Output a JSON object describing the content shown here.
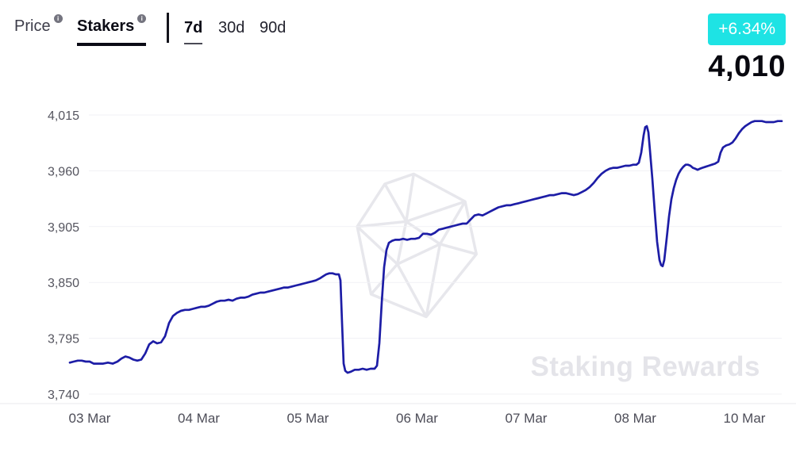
{
  "header": {
    "metric_tabs": [
      {
        "label": "Price"
      },
      {
        "label": "Stakers"
      }
    ],
    "active_metric": "Stakers",
    "range_tabs": [
      {
        "label": "7d"
      },
      {
        "label": "30d"
      },
      {
        "label": "90d"
      }
    ],
    "active_range": "7d",
    "change_badge": "+6.34%",
    "badge_color": "#1ee3e4",
    "current_value": "4,010"
  },
  "watermark": {
    "text": "Staking Rewards"
  },
  "chart_data": {
    "type": "line",
    "series_name": "Stakers",
    "line_color": "#1d1da6",
    "ylim": [
      3740,
      4015
    ],
    "grid": true,
    "y_tick_values": [
      4015,
      3960,
      3905,
      3850,
      3795,
      3740
    ],
    "y_ticks": [
      "4,015",
      "3,960",
      "3,905",
      "3,850",
      "3,795",
      "3,740"
    ],
    "x_ticks": [
      "03 Mar",
      "04 Mar",
      "05 Mar",
      "06 Mar",
      "07 Mar",
      "08 Mar",
      "10 Mar"
    ],
    "points": [
      [
        88,
        3771
      ],
      [
        93,
        3772
      ],
      [
        98,
        3773
      ],
      [
        103,
        3773
      ],
      [
        108,
        3772
      ],
      [
        113,
        3772
      ],
      [
        118,
        3770
      ],
      [
        124,
        3770
      ],
      [
        130,
        3770
      ],
      [
        136,
        3771
      ],
      [
        142,
        3770
      ],
      [
        148,
        3772
      ],
      [
        153,
        3775
      ],
      [
        158,
        3777
      ],
      [
        163,
        3776
      ],
      [
        168,
        3774
      ],
      [
        173,
        3773
      ],
      [
        178,
        3774
      ],
      [
        183,
        3780
      ],
      [
        188,
        3789
      ],
      [
        193,
        3792
      ],
      [
        198,
        3790
      ],
      [
        203,
        3791
      ],
      [
        208,
        3797
      ],
      [
        213,
        3810
      ],
      [
        218,
        3817
      ],
      [
        223,
        3820
      ],
      [
        228,
        3822
      ],
      [
        233,
        3823
      ],
      [
        238,
        3823
      ],
      [
        243,
        3824
      ],
      [
        248,
        3825
      ],
      [
        253,
        3826
      ],
      [
        258,
        3826
      ],
      [
        263,
        3827
      ],
      [
        268,
        3829
      ],
      [
        273,
        3831
      ],
      [
        278,
        3832
      ],
      [
        283,
        3832
      ],
      [
        288,
        3833
      ],
      [
        293,
        3832
      ],
      [
        298,
        3834
      ],
      [
        303,
        3835
      ],
      [
        308,
        3835
      ],
      [
        313,
        3836
      ],
      [
        318,
        3838
      ],
      [
        323,
        3839
      ],
      [
        328,
        3840
      ],
      [
        333,
        3840
      ],
      [
        338,
        3841
      ],
      [
        343,
        3842
      ],
      [
        348,
        3843
      ],
      [
        353,
        3844
      ],
      [
        358,
        3845
      ],
      [
        363,
        3845
      ],
      [
        368,
        3846
      ],
      [
        373,
        3847
      ],
      [
        378,
        3848
      ],
      [
        383,
        3849
      ],
      [
        388,
        3850
      ],
      [
        393,
        3851
      ],
      [
        398,
        3852
      ],
      [
        403,
        3854
      ],
      [
        407,
        3856
      ],
      [
        411,
        3858
      ],
      [
        415,
        3859
      ],
      [
        419,
        3859
      ],
      [
        423,
        3858
      ],
      [
        427,
        3858
      ],
      [
        429,
        3852
      ],
      [
        431,
        3810
      ],
      [
        433,
        3770
      ],
      [
        435,
        3763
      ],
      [
        438,
        3761
      ],
      [
        442,
        3762
      ],
      [
        447,
        3764
      ],
      [
        452,
        3764
      ],
      [
        457,
        3765
      ],
      [
        462,
        3764
      ],
      [
        467,
        3765
      ],
      [
        472,
        3765
      ],
      [
        475,
        3768
      ],
      [
        478,
        3790
      ],
      [
        481,
        3830
      ],
      [
        484,
        3865
      ],
      [
        487,
        3882
      ],
      [
        490,
        3889
      ],
      [
        494,
        3891
      ],
      [
        498,
        3892
      ],
      [
        503,
        3892
      ],
      [
        508,
        3893
      ],
      [
        513,
        3892
      ],
      [
        518,
        3893
      ],
      [
        523,
        3893
      ],
      [
        528,
        3894
      ],
      [
        533,
        3898
      ],
      [
        538,
        3898
      ],
      [
        543,
        3897
      ],
      [
        548,
        3899
      ],
      [
        553,
        3902
      ],
      [
        558,
        3903
      ],
      [
        563,
        3904
      ],
      [
        568,
        3905
      ],
      [
        573,
        3906
      ],
      [
        578,
        3907
      ],
      [
        583,
        3908
      ],
      [
        588,
        3908
      ],
      [
        593,
        3912
      ],
      [
        598,
        3916
      ],
      [
        603,
        3917
      ],
      [
        608,
        3916
      ],
      [
        613,
        3918
      ],
      [
        618,
        3920
      ],
      [
        623,
        3922
      ],
      [
        628,
        3924
      ],
      [
        633,
        3925
      ],
      [
        638,
        3926
      ],
      [
        643,
        3926
      ],
      [
        648,
        3927
      ],
      [
        653,
        3928
      ],
      [
        658,
        3929
      ],
      [
        663,
        3930
      ],
      [
        668,
        3931
      ],
      [
        673,
        3932
      ],
      [
        678,
        3933
      ],
      [
        683,
        3934
      ],
      [
        688,
        3935
      ],
      [
        693,
        3936
      ],
      [
        698,
        3936
      ],
      [
        703,
        3937
      ],
      [
        708,
        3938
      ],
      [
        713,
        3938
      ],
      [
        718,
        3937
      ],
      [
        723,
        3936
      ],
      [
        728,
        3937
      ],
      [
        733,
        3939
      ],
      [
        738,
        3941
      ],
      [
        743,
        3944
      ],
      [
        748,
        3948
      ],
      [
        753,
        3953
      ],
      [
        758,
        3957
      ],
      [
        763,
        3960
      ],
      [
        768,
        3962
      ],
      [
        773,
        3963
      ],
      [
        778,
        3963
      ],
      [
        783,
        3964
      ],
      [
        788,
        3965
      ],
      [
        793,
        3965
      ],
      [
        798,
        3966
      ],
      [
        802,
        3966
      ],
      [
        805,
        3968
      ],
      [
        808,
        3978
      ],
      [
        811,
        3995
      ],
      [
        813,
        4003
      ],
      [
        815,
        4004
      ],
      [
        817,
        3998
      ],
      [
        819,
        3980
      ],
      [
        822,
        3952
      ],
      [
        825,
        3920
      ],
      [
        828,
        3890
      ],
      [
        831,
        3872
      ],
      [
        833,
        3867
      ],
      [
        835,
        3866
      ],
      [
        837,
        3872
      ],
      [
        840,
        3893
      ],
      [
        843,
        3915
      ],
      [
        846,
        3932
      ],
      [
        849,
        3943
      ],
      [
        852,
        3951
      ],
      [
        855,
        3957
      ],
      [
        858,
        3961
      ],
      [
        861,
        3964
      ],
      [
        864,
        3966
      ],
      [
        867,
        3966
      ],
      [
        870,
        3965
      ],
      [
        873,
        3963
      ],
      [
        876,
        3962
      ],
      [
        879,
        3961
      ],
      [
        882,
        3962
      ],
      [
        885,
        3963
      ],
      [
        889,
        3964
      ],
      [
        893,
        3965
      ],
      [
        897,
        3966
      ],
      [
        901,
        3967
      ],
      [
        905,
        3969
      ],
      [
        908,
        3978
      ],
      [
        911,
        3983
      ],
      [
        915,
        3985
      ],
      [
        919,
        3986
      ],
      [
        923,
        3988
      ],
      [
        927,
        3992
      ],
      [
        931,
        3997
      ],
      [
        935,
        4001
      ],
      [
        939,
        4004
      ],
      [
        943,
        4006
      ],
      [
        947,
        4008
      ],
      [
        951,
        4009
      ],
      [
        955,
        4009
      ],
      [
        960,
        4009
      ],
      [
        965,
        4008
      ],
      [
        970,
        4008
      ],
      [
        975,
        4008
      ],
      [
        980,
        4009
      ],
      [
        985,
        4009
      ]
    ]
  }
}
